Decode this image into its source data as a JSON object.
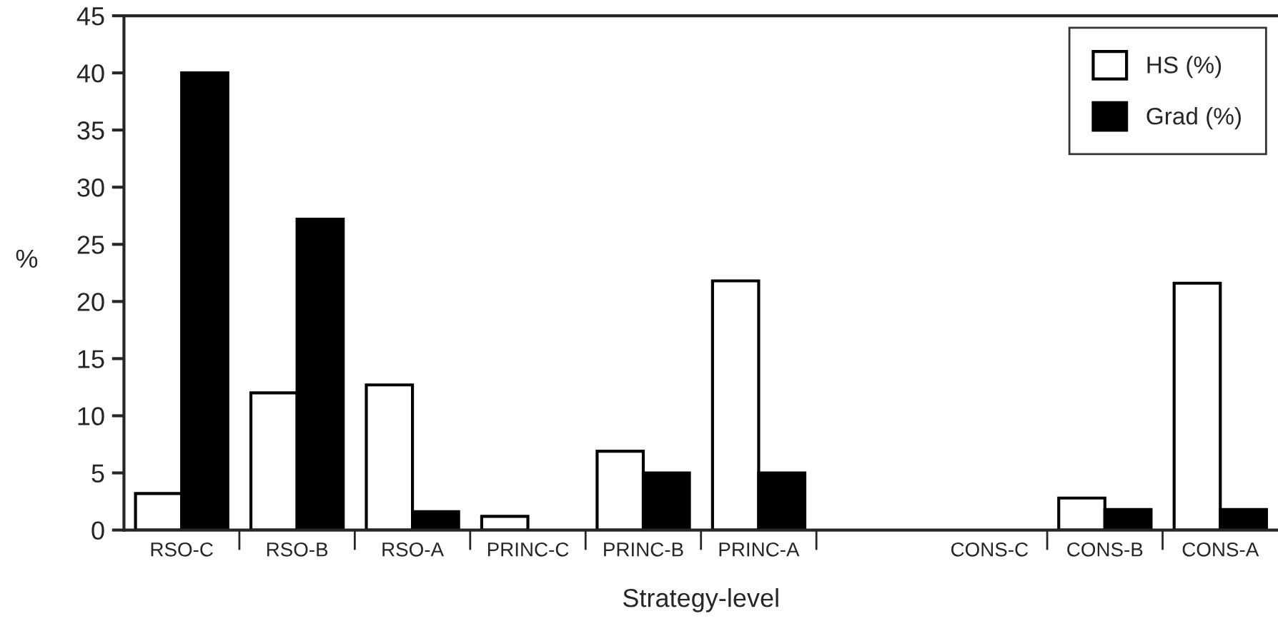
{
  "chart_data": {
    "type": "bar",
    "xlabel": "Strategy-level",
    "ylabel": "%",
    "categories": [
      "RSO-C",
      "RSO-B",
      "RSO-A",
      "PRINC-C",
      "PRINC-B",
      "PRINC-A",
      null,
      "CONS-C",
      "CONS-B",
      "CONS-A"
    ],
    "series": [
      {
        "name": "HS (%)",
        "color": "#ffffff",
        "values": [
          3.2,
          12.0,
          12.7,
          1.2,
          6.9,
          21.8,
          null,
          null,
          2.8,
          21.6
        ]
      },
      {
        "name": "Grad (%)",
        "color": "#000000",
        "values": [
          40,
          27.2,
          1.6,
          null,
          5.0,
          5.0,
          null,
          null,
          1.8,
          1.8
        ]
      }
    ],
    "ylim": [
      0,
      45
    ],
    "yticks": [
      0,
      5,
      10,
      15,
      20,
      25,
      30,
      35,
      40,
      45
    ],
    "grid": false,
    "legend": "top right"
  }
}
